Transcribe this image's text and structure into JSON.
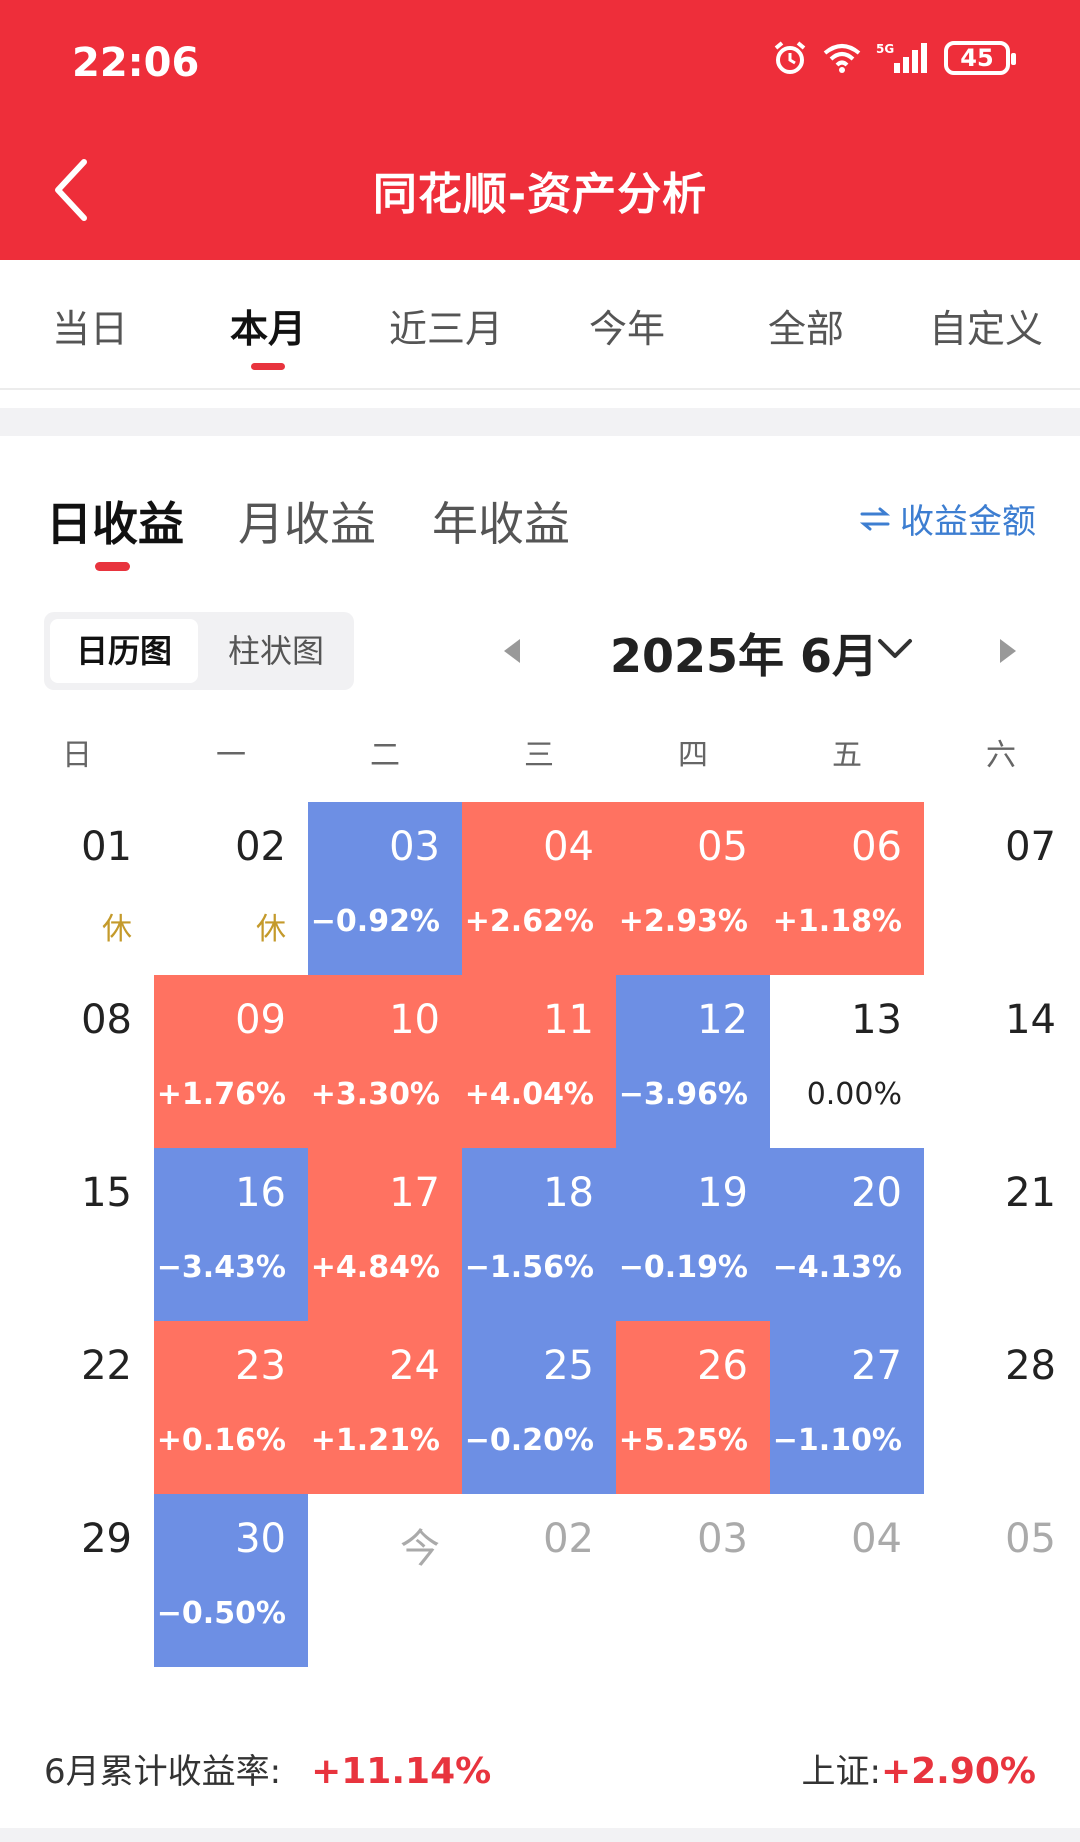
{
  "status": {
    "time": "22:06",
    "battery": "45",
    "network": "5G"
  },
  "header": {
    "title": "同花顺-资产分析"
  },
  "tabs": [
    {
      "label": "当日",
      "active": false
    },
    {
      "label": "本月",
      "active": true
    },
    {
      "label": "近三月",
      "active": false
    },
    {
      "label": "今年",
      "active": false
    },
    {
      "label": "全部",
      "active": false
    },
    {
      "label": "自定义",
      "active": false
    }
  ],
  "return_tabs": [
    {
      "label": "日收益",
      "active": true
    },
    {
      "label": "月收益",
      "active": false
    },
    {
      "label": "年收益",
      "active": false
    }
  ],
  "switch_label": "收益金额",
  "view_toggle": {
    "active": "日历图",
    "inactive": "柱状图"
  },
  "month": {
    "label": "2025年 6月"
  },
  "weekdays": [
    "日",
    "一",
    "二",
    "三",
    "四",
    "五",
    "六"
  ],
  "calendar": [
    [
      {
        "day": "01",
        "value": "休",
        "type": "holiday"
      },
      {
        "day": "02",
        "value": "休",
        "type": "holiday"
      },
      {
        "day": "03",
        "value": "−0.92%",
        "type": "down"
      },
      {
        "day": "04",
        "value": "+2.62%",
        "type": "up"
      },
      {
        "day": "05",
        "value": "+2.93%",
        "type": "up"
      },
      {
        "day": "06",
        "value": "+1.18%",
        "type": "up"
      },
      {
        "day": "07",
        "value": "",
        "type": "weekend"
      }
    ],
    [
      {
        "day": "08",
        "value": "",
        "type": "weekend"
      },
      {
        "day": "09",
        "value": "+1.76%",
        "type": "up"
      },
      {
        "day": "10",
        "value": "+3.30%",
        "type": "up"
      },
      {
        "day": "11",
        "value": "+4.04%",
        "type": "up"
      },
      {
        "day": "12",
        "value": "−3.96%",
        "type": "down"
      },
      {
        "day": "13",
        "value": "0.00%",
        "type": "zero"
      },
      {
        "day": "14",
        "value": "",
        "type": "weekend"
      }
    ],
    [
      {
        "day": "15",
        "value": "",
        "type": "weekend"
      },
      {
        "day": "16",
        "value": "−3.43%",
        "type": "down"
      },
      {
        "day": "17",
        "value": "+4.84%",
        "type": "up"
      },
      {
        "day": "18",
        "value": "−1.56%",
        "type": "down"
      },
      {
        "day": "19",
        "value": "−0.19%",
        "type": "down"
      },
      {
        "day": "20",
        "value": "−4.13%",
        "type": "down"
      },
      {
        "day": "21",
        "value": "",
        "type": "weekend"
      }
    ],
    [
      {
        "day": "22",
        "value": "",
        "type": "weekend"
      },
      {
        "day": "23",
        "value": "+0.16%",
        "type": "up"
      },
      {
        "day": "24",
        "value": "+1.21%",
        "type": "up"
      },
      {
        "day": "25",
        "value": "−0.20%",
        "type": "down"
      },
      {
        "day": "26",
        "value": "+5.25%",
        "type": "up"
      },
      {
        "day": "27",
        "value": "−1.10%",
        "type": "down"
      },
      {
        "day": "28",
        "value": "",
        "type": "weekend"
      }
    ],
    [
      {
        "day": "29",
        "value": "",
        "type": "weekend"
      },
      {
        "day": "30",
        "value": "−0.50%",
        "type": "down"
      },
      {
        "day": "今",
        "value": "",
        "type": "next"
      },
      {
        "day": "02",
        "value": "",
        "type": "next"
      },
      {
        "day": "03",
        "value": "",
        "type": "next"
      },
      {
        "day": "04",
        "value": "",
        "type": "next"
      },
      {
        "day": "05",
        "value": "",
        "type": "next"
      }
    ]
  ],
  "summary": {
    "label": "6月累计收益率:",
    "value": "+11.14%"
  },
  "index": {
    "label": "上证:",
    "value": "+2.90%"
  },
  "colors": {
    "header": "#EE2E3A",
    "up": "#FF7261",
    "down": "#6D8FE4",
    "accent": "#E8343E",
    "link": "#3D7ED1"
  }
}
